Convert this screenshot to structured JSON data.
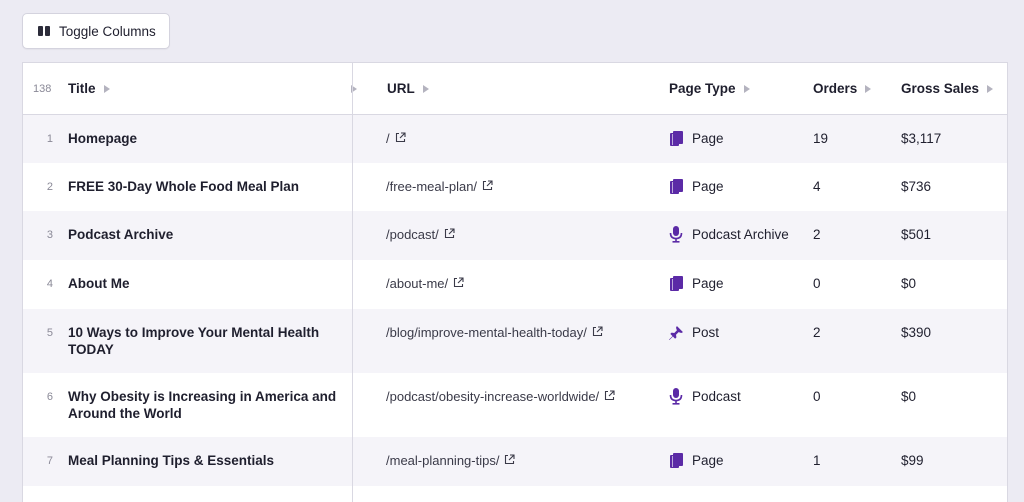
{
  "toolbar": {
    "toggle_columns_label": "Toggle Columns"
  },
  "table": {
    "row_count": "138",
    "columns": {
      "title": "Title",
      "url": "URL",
      "page_type": "Page Type",
      "orders": "Orders",
      "gross_sales": "Gross Sales"
    },
    "rows": [
      {
        "index": "1",
        "title": "Homepage",
        "url": "/",
        "page_type": "Page",
        "type_icon": "page-icon",
        "orders": "19",
        "gross_sales": "$3,117"
      },
      {
        "index": "2",
        "title": "FREE 30-Day Whole Food Meal Plan",
        "url": "/free-meal-plan/",
        "page_type": "Page",
        "type_icon": "page-icon",
        "orders": "4",
        "gross_sales": "$736"
      },
      {
        "index": "3",
        "title": "Podcast Archive",
        "url": "/podcast/",
        "page_type": "Podcast Archive",
        "type_icon": "microphone-icon",
        "orders": "2",
        "gross_sales": "$501"
      },
      {
        "index": "4",
        "title": "About Me",
        "url": "/about-me/",
        "page_type": "Page",
        "type_icon": "page-icon",
        "orders": "0",
        "gross_sales": "$0"
      },
      {
        "index": "5",
        "title": "10 Ways to Improve Your Mental Health TODAY",
        "url": "/blog/improve-mental-health-today/",
        "page_type": "Post",
        "type_icon": "pin-icon",
        "orders": "2",
        "gross_sales": "$390"
      },
      {
        "index": "6",
        "title": "Why Obesity is Increasing in America and Around the World",
        "url": "/podcast/obesity-increase-worldwide/",
        "page_type": "Podcast",
        "type_icon": "microphone-icon",
        "orders": "0",
        "gross_sales": "$0"
      },
      {
        "index": "7",
        "title": "Meal Planning Tips & Essentials",
        "url": "/meal-planning-tips/",
        "page_type": "Page",
        "type_icon": "page-icon",
        "orders": "1",
        "gross_sales": "$99"
      },
      {
        "index": "",
        "title": "",
        "url": "",
        "page_type": "",
        "type_icon": "",
        "orders": "",
        "gross_sales": ""
      }
    ]
  },
  "colors": {
    "accent": "#5b2aa6",
    "background": "#ecebf3",
    "row_alt": "#f5f4f9"
  }
}
